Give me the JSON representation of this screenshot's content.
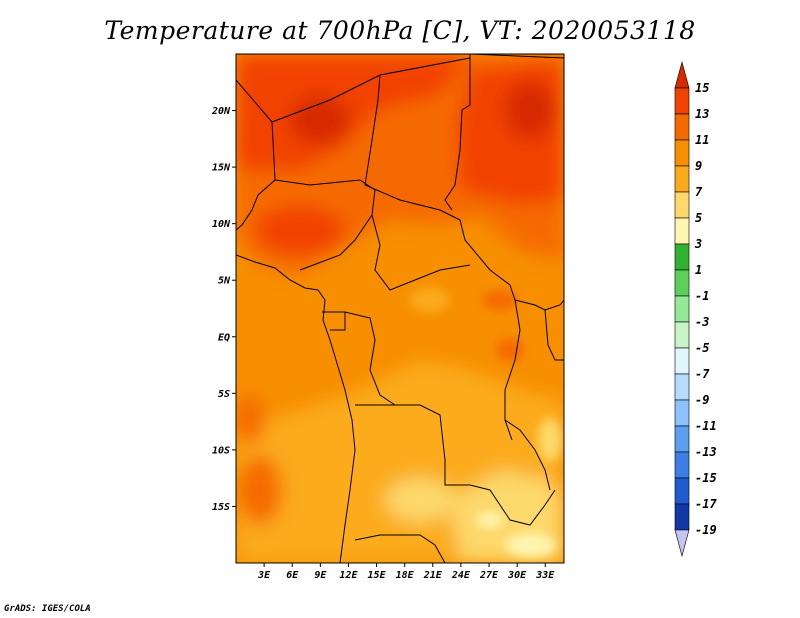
{
  "title": "Temperature at 700hPa [C], VT: 2020053118",
  "credit": "GrADS: IGES/COLA",
  "map": {
    "lat_labels": [
      "20N",
      "15N",
      "10N",
      "5N",
      "EQ",
      "5S",
      "10S",
      "15S"
    ],
    "lat_values": [
      20,
      15,
      10,
      5,
      0,
      -5,
      -10,
      -15
    ],
    "lon_labels": [
      "3E",
      "6E",
      "9E",
      "12E",
      "15E",
      "18E",
      "21E",
      "24E",
      "27E",
      "30E",
      "33E"
    ],
    "lon_values": [
      3,
      6,
      9,
      12,
      15,
      18,
      21,
      24,
      27,
      30,
      33
    ],
    "lon_range": [
      0,
      35
    ],
    "lat_range": [
      -20,
      25
    ]
  },
  "colorbar": {
    "labels": [
      "15",
      "13",
      "11",
      "9",
      "7",
      "5",
      "3",
      "1",
      "-1",
      "-3",
      "-5",
      "-7",
      "-9",
      "-11",
      "-13",
      "-15",
      "-17",
      "-19"
    ],
    "colors": [
      "#d62b00",
      "#f24200",
      "#f56a00",
      "#f78f00",
      "#fbab1a",
      "#fdd86a",
      "#fff5b0",
      "#30b230",
      "#5ad05a",
      "#95e895",
      "#c8f5c8",
      "#e0f5ff",
      "#b4dcff",
      "#8cc3ff",
      "#5a9ff0",
      "#3c7ee6",
      "#1e5cd0",
      "#1238a8",
      "#0a1e78",
      "#c4c4f0"
    ]
  }
}
